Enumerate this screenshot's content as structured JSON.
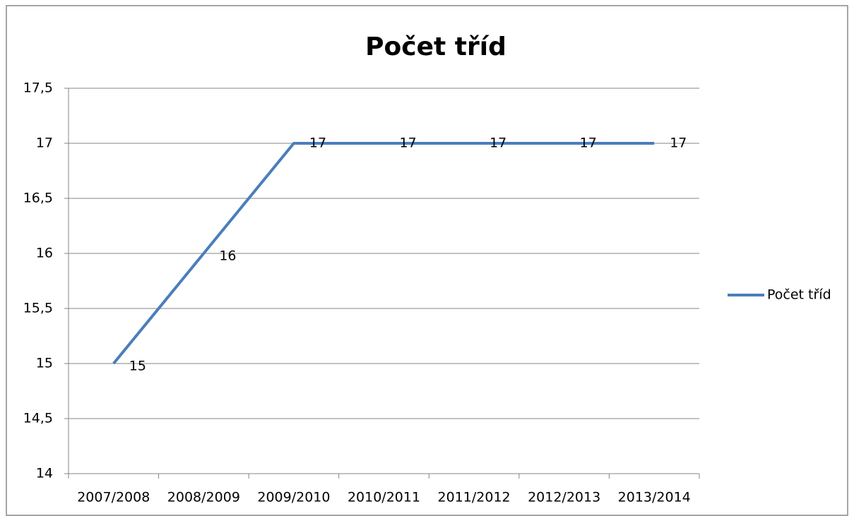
{
  "chart_data": {
    "type": "line",
    "title": "Počet tříd",
    "categories": [
      "2007/2008",
      "2008/2009",
      "2009/2010",
      "2010/2011",
      "2011/2012",
      "2012/2013",
      "2013/2014"
    ],
    "series": [
      {
        "name": "Počet tříd",
        "color": "#4a7ebb",
        "values": [
          15,
          16,
          17,
          17,
          17,
          17,
          17
        ]
      }
    ],
    "ylim": [
      14,
      17.5
    ],
    "yticks": [
      14,
      {
        "value": 14.5,
        "label": "14,5"
      },
      15,
      {
        "value": 15.5,
        "label": "15,5"
      },
      16,
      {
        "value": 16.5,
        "label": "16,5"
      },
      17,
      {
        "value": 17.5,
        "label": "17,5"
      }
    ],
    "grid": true,
    "legend": "right"
  }
}
